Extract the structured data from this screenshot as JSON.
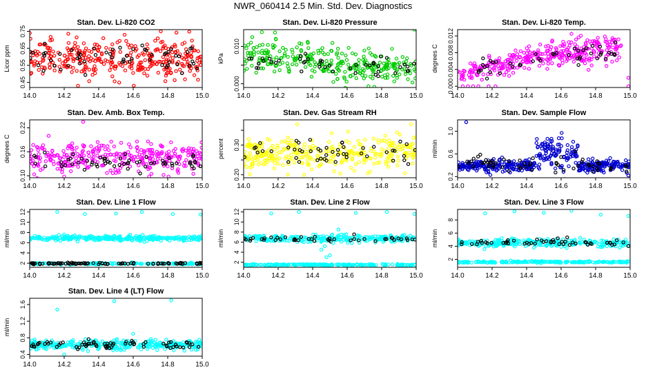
{
  "page": {
    "title": "NWR_060414  2.5 Min. Std. Dev. Diagnostics"
  },
  "chart_data": [
    {
      "type": "scatter",
      "title": "Stan. Dev. Li-820 CO2",
      "ylabel": "Licor ppm",
      "xlim": [
        14.0,
        15.0
      ],
      "xticks": [
        14.0,
        14.2,
        14.4,
        14.6,
        14.8,
        15.0
      ],
      "xtick_labels": [
        "14.0",
        "14.2",
        "14.4",
        "14.6",
        "14.8",
        "15.0"
      ],
      "ylim": [
        0.42,
        0.76
      ],
      "yticks": [
        0.45,
        0.55,
        0.65,
        0.75
      ],
      "ytick_labels": [
        "0.45",
        "0.55",
        "0.65",
        "0.75"
      ],
      "colors": {
        "series": "#ff0000",
        "highlight": "#000000"
      },
      "series": [
        {
          "n": 340,
          "center": 0.59,
          "spread": 0.055,
          "x_range": [
            14.0,
            15.0
          ],
          "color": "#ff0000"
        },
        {
          "n": 60,
          "center": 0.59,
          "spread": 0.04,
          "x_range": [
            14.0,
            15.0
          ],
          "color": "#000000"
        }
      ],
      "outliers": [
        {
          "x": 14.13,
          "y": 0.7
        },
        {
          "x": 14.28,
          "y": 0.43
        },
        {
          "x": 14.55,
          "y": 0.73
        },
        {
          "x": 14.76,
          "y": 0.75
        }
      ]
    },
    {
      "type": "scatter",
      "title": "Stan. Dev. Li-820 Pressure",
      "ylabel": "kPa",
      "xlim": [
        14.0,
        15.0
      ],
      "xticks": [
        14.0,
        14.2,
        14.4,
        14.6,
        14.8,
        15.0
      ],
      "xtick_labels": [
        "14.0",
        "14.2",
        "14.4",
        "14.6",
        "14.8",
        "15.0"
      ],
      "ylim": [
        -0.001,
        0.0145
      ],
      "yticks": [
        0.0,
        0.005,
        0.01
      ],
      "ytick_labels": [
        "0.000",
        "",
        "0.010"
      ],
      "colors": {
        "series": "#00cc00",
        "highlight": "#000000"
      },
      "series": [
        {
          "n": 320,
          "center_start": 0.0075,
          "center_end": 0.0035,
          "spread": 0.0022,
          "x_range": [
            14.0,
            15.0
          ],
          "color": "#00cc00"
        },
        {
          "n": 45,
          "center_start": 0.0065,
          "center_end": 0.004,
          "spread": 0.0012,
          "x_range": [
            14.0,
            15.0
          ],
          "color": "#000000"
        }
      ],
      "outliers": [
        {
          "x": 14.05,
          "y": 0.0125
        },
        {
          "x": 14.99,
          "y": 0.0145
        },
        {
          "x": 14.52,
          "y": 0.0005
        }
      ]
    },
    {
      "type": "scatter",
      "title": "Stan. Dev. Li-820 Temp.",
      "ylabel": "degrees C",
      "xlim": [
        14.0,
        15.0
      ],
      "xticks": [
        14.0,
        14.2,
        14.4,
        14.6,
        14.8,
        15.0
      ],
      "xtick_labels": [
        "14.0",
        "14.2",
        "14.4",
        "14.6",
        "14.8",
        "15.0"
      ],
      "ylim": [
        -0.0003,
        0.0135
      ],
      "yticks": [
        0.0,
        0.004,
        0.008,
        0.012
      ],
      "ytick_labels": [
        "0.000",
        "0.004",
        "0.008",
        "0.012"
      ],
      "colors": {
        "series": "#ff00ff",
        "highlight": "#000000"
      },
      "series": [
        {
          "n": 90,
          "center_start": 0.003,
          "center_end": 0.005,
          "spread": 0.0012,
          "x_range": [
            14.0,
            14.3
          ],
          "color": "#ff00ff"
        },
        {
          "n": 250,
          "center_start": 0.006,
          "center_end": 0.0095,
          "spread": 0.0016,
          "x_range": [
            14.3,
            14.95
          ],
          "color": "#ff00ff"
        },
        {
          "n": 45,
          "center_start": 0.0035,
          "center_end": 0.009,
          "spread": 0.0012,
          "x_range": [
            14.05,
            14.95
          ],
          "color": "#000000"
        }
      ],
      "outliers": [
        {
          "x": 14.03,
          "y": 0.0
        },
        {
          "x": 14.06,
          "y": 0.0
        },
        {
          "x": 14.09,
          "y": 0.0
        },
        {
          "x": 14.12,
          "y": 0.0
        },
        {
          "x": 14.18,
          "y": 0.0
        },
        {
          "x": 14.22,
          "y": 0.0
        },
        {
          "x": 14.66,
          "y": 0.0125
        },
        {
          "x": 14.99,
          "y": 0.0
        },
        {
          "x": 14.99,
          "y": 0.002
        }
      ]
    },
    {
      "type": "scatter",
      "title": "Stan. Dev. Amb. Box Temp.",
      "ylabel": "degrees C",
      "xlim": [
        14.0,
        15.0
      ],
      "xticks": [
        14.0,
        14.2,
        14.4,
        14.6,
        14.8,
        15.0
      ],
      "xtick_labels": [
        "14.0",
        "14.2",
        "14.4",
        "14.6",
        "14.8",
        "15.0"
      ],
      "ylim": [
        0.095,
        0.24
      ],
      "yticks": [
        0.1,
        0.16,
        0.22
      ],
      "ytick_labels": [
        "0.10",
        "0.16",
        "0.22"
      ],
      "colors": {
        "series": "#ff00ff",
        "highlight": "#000000"
      },
      "series": [
        {
          "n": 330,
          "center": 0.145,
          "spread": 0.018,
          "x_range": [
            14.0,
            15.0
          ],
          "color": "#ff00ff"
        },
        {
          "n": 60,
          "center": 0.135,
          "spread": 0.01,
          "x_range": [
            14.0,
            15.0
          ],
          "color": "#000000"
        }
      ],
      "outliers": [
        {
          "x": 14.31,
          "y": 0.235
        },
        {
          "x": 14.11,
          "y": 0.2
        },
        {
          "x": 14.2,
          "y": 0.098
        }
      ]
    },
    {
      "type": "scatter",
      "title": "Stan. Dev. Gas Stream RH",
      "ylabel": "percent",
      "xlim": [
        14.0,
        15.0
      ],
      "xticks": [
        14.0,
        14.2,
        14.4,
        14.6,
        14.8,
        15.0
      ],
      "xtick_labels": [
        "14.0",
        "14.2",
        "14.4",
        "14.6",
        "14.8",
        "15.0"
      ],
      "ylim": [
        0.19,
        0.385
      ],
      "yticks": [
        0.2,
        0.25,
        0.3,
        0.35
      ],
      "ytick_labels": [
        "0.20",
        "",
        "0.30",
        ""
      ],
      "colors": {
        "series": "#ffff00",
        "highlight": "#000000"
      },
      "series": [
        {
          "n": 330,
          "center": 0.27,
          "spread": 0.028,
          "x_range": [
            14.0,
            15.0
          ],
          "color": "#ffff00"
        },
        {
          "n": 50,
          "center": 0.275,
          "spread": 0.022,
          "x_range": [
            14.0,
            15.0
          ],
          "color": "#000000"
        }
      ],
      "outliers": [
        {
          "x": 14.31,
          "y": 0.37
        },
        {
          "x": 14.97,
          "y": 0.37
        },
        {
          "x": 14.35,
          "y": 0.2
        }
      ]
    },
    {
      "type": "scatter",
      "title": "Stan. Dev. Sample Flow",
      "ylabel": "ml/min",
      "xlim": [
        14.0,
        15.0
      ],
      "xticks": [
        14.0,
        14.2,
        14.4,
        14.6,
        14.8,
        15.0
      ],
      "xtick_labels": [
        "14.0",
        "14.2",
        "14.4",
        "14.6",
        "14.8",
        "15.0"
      ],
      "ylim": [
        0.18,
        1.2
      ],
      "yticks": [
        0.2,
        0.6,
        1.0
      ],
      "ytick_labels": [
        "0.2",
        "0.6",
        "1.0"
      ],
      "colors": {
        "series": "#0000cc",
        "highlight": "#000000"
      },
      "series": [
        {
          "n": 200,
          "center": 0.38,
          "spread": 0.05,
          "x_range": [
            14.0,
            14.45
          ],
          "color": "#0000cc"
        },
        {
          "n": 110,
          "center": 0.62,
          "spread": 0.14,
          "x_range": [
            14.45,
            14.7
          ],
          "color": "#0000cc"
        },
        {
          "n": 150,
          "center": 0.4,
          "spread": 0.05,
          "x_range": [
            14.7,
            15.0
          ],
          "color": "#0000cc"
        },
        {
          "n": 60,
          "center": 0.42,
          "spread": 0.08,
          "x_range": [
            14.0,
            15.0
          ],
          "color": "#000000"
        }
      ],
      "outliers": [
        {
          "x": 14.05,
          "y": 1.16
        },
        {
          "x": 14.99,
          "y": 0.22
        }
      ]
    },
    {
      "type": "scatter",
      "title": "Stan. Dev. Line 1 Flow",
      "ylabel": "ml/min",
      "xlim": [
        14.0,
        15.0
      ],
      "xticks": [
        14.0,
        14.2,
        14.4,
        14.6,
        14.8,
        15.0
      ],
      "xtick_labels": [
        "14.0",
        "14.2",
        "14.4",
        "14.6",
        "14.8",
        "15.0"
      ],
      "ylim": [
        1.2,
        12.5
      ],
      "yticks": [
        2,
        4,
        6,
        8,
        10,
        12
      ],
      "ytick_labels": [
        "2",
        "4",
        "6",
        "8",
        "10",
        "12"
      ],
      "colors": {
        "series": "#00ffff",
        "highlight": "#000000"
      },
      "series": [
        {
          "n": 280,
          "center": 6.9,
          "spread": 0.25,
          "x_range": [
            14.0,
            15.0
          ],
          "color": "#00ffff"
        },
        {
          "n": 160,
          "center": 1.9,
          "spread": 0.08,
          "x_range": [
            14.0,
            15.0
          ],
          "color": "#00ffff"
        },
        {
          "n": 90,
          "center": 1.95,
          "spread": 0.08,
          "x_range": [
            14.0,
            15.0
          ],
          "color": "#000000"
        }
      ],
      "outliers": [
        {
          "x": 14.16,
          "y": 12.0
        },
        {
          "x": 14.32,
          "y": 11.6
        },
        {
          "x": 14.5,
          "y": 11.7
        },
        {
          "x": 14.65,
          "y": 12.0
        },
        {
          "x": 14.83,
          "y": 11.6
        },
        {
          "x": 14.99,
          "y": 11.5
        }
      ]
    },
    {
      "type": "scatter",
      "title": "Stan. Dev. Line 2 Flow",
      "ylabel": "ml/min",
      "xlim": [
        14.0,
        15.0
      ],
      "xticks": [
        14.0,
        14.2,
        14.4,
        14.6,
        14.8,
        15.0
      ],
      "xtick_labels": [
        "14.0",
        "14.2",
        "14.4",
        "14.6",
        "14.8",
        "15.0"
      ],
      "ylim": [
        1.0,
        12.5
      ],
      "yticks": [
        2,
        4,
        6,
        8,
        10,
        12
      ],
      "ytick_labels": [
        "2",
        "4",
        "6",
        "8",
        "10",
        "12"
      ],
      "colors": {
        "series": "#00ffff",
        "highlight": "#000000"
      },
      "series": [
        {
          "n": 260,
          "center": 6.7,
          "spread": 0.35,
          "x_range": [
            14.0,
            15.0
          ],
          "color": "#00ffff"
        },
        {
          "n": 220,
          "center": 1.5,
          "spread": 0.07,
          "x_range": [
            14.0,
            15.0
          ],
          "color": "#00ffff"
        },
        {
          "n": 45,
          "center": 6.6,
          "spread": 0.25,
          "x_range": [
            14.0,
            15.0
          ],
          "color": "#000000"
        }
      ],
      "outliers": [
        {
          "x": 14.16,
          "y": 11.7
        },
        {
          "x": 14.32,
          "y": 12.0
        },
        {
          "x": 14.65,
          "y": 11.8
        },
        {
          "x": 14.83,
          "y": 12.0
        },
        {
          "x": 14.99,
          "y": 11.6
        },
        {
          "x": 14.45,
          "y": 4.5
        },
        {
          "x": 14.47,
          "y": 5.2
        },
        {
          "x": 14.5,
          "y": 3.4
        },
        {
          "x": 14.52,
          "y": 5.8
        },
        {
          "x": 14.55,
          "y": 8.5
        },
        {
          "x": 14.48,
          "y": 3.0
        }
      ]
    },
    {
      "type": "scatter",
      "title": "Stan. Dev. Line 3 Flow",
      "ylabel": "ml/min",
      "xlim": [
        14.0,
        15.0
      ],
      "xticks": [
        14.0,
        14.2,
        14.4,
        14.6,
        14.8,
        15.0
      ],
      "xtick_labels": [
        "14.0",
        "14.2",
        "14.4",
        "14.6",
        "14.8",
        "15.0"
      ],
      "ylim": [
        0.8,
        9.6
      ],
      "yticks": [
        2,
        4,
        6,
        8
      ],
      "ytick_labels": [
        "2",
        "4",
        "6",
        "8"
      ],
      "colors": {
        "series": "#00ffff",
        "highlight": "#000000"
      },
      "series": [
        {
          "n": 280,
          "center": 4.5,
          "spread": 0.3,
          "x_range": [
            14.0,
            15.0
          ],
          "color": "#00ffff"
        },
        {
          "n": 200,
          "center": 1.6,
          "spread": 0.07,
          "x_range": [
            14.0,
            15.0
          ],
          "color": "#00ffff"
        },
        {
          "n": 55,
          "center": 4.6,
          "spread": 0.25,
          "x_range": [
            14.0,
            15.0
          ],
          "color": "#000000"
        }
      ],
      "outliers": [
        {
          "x": 14.16,
          "y": 9.0
        },
        {
          "x": 14.33,
          "y": 9.3
        },
        {
          "x": 14.5,
          "y": 9.1
        },
        {
          "x": 14.66,
          "y": 9.4
        },
        {
          "x": 14.83,
          "y": 8.8
        },
        {
          "x": 14.99,
          "y": 8.6
        }
      ]
    },
    {
      "type": "scatter",
      "title": "Stan. Dev. Line 4 (LT) Flow",
      "ylabel": "ml/min",
      "xlim": [
        14.0,
        15.0
      ],
      "xticks": [
        14.0,
        14.2,
        14.4,
        14.6,
        14.8,
        15.0
      ],
      "xtick_labels": [
        "14.0",
        "14.2",
        "14.4",
        "14.6",
        "14.8",
        "15.0"
      ],
      "ylim": [
        0.36,
        1.75
      ],
      "yticks": [
        0.4,
        0.8,
        1.2,
        1.6
      ],
      "ytick_labels": [
        "0.4",
        "0.8",
        "1.2",
        "1.6"
      ],
      "colors": {
        "series": "#00ffff",
        "highlight": "#000000"
      },
      "series": [
        {
          "n": 330,
          "center": 0.63,
          "spread": 0.055,
          "x_range": [
            14.0,
            15.0
          ],
          "color": "#00ffff"
        },
        {
          "n": 70,
          "center": 0.64,
          "spread": 0.05,
          "x_range": [
            14.0,
            15.0
          ],
          "color": "#000000"
        }
      ],
      "outliers": [
        {
          "x": 14.16,
          "y": 1.48
        },
        {
          "x": 14.49,
          "y": 1.68
        },
        {
          "x": 14.82,
          "y": 1.7
        },
        {
          "x": 14.2,
          "y": 0.4
        },
        {
          "x": 14.6,
          "y": 0.9
        }
      ]
    }
  ]
}
